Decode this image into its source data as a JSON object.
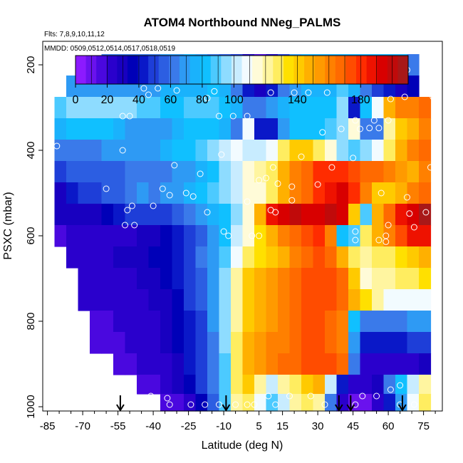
{
  "chart_data": {
    "type": "heatmap",
    "title": "ATOM4 Northbound NNeg_PALMS",
    "flights_note": "Flts: 7,8,9,10,11,12",
    "dates_note": "MMDD: 0509,0512,0514,0517,0518,0519",
    "xlabel": "Latitude (deg N)",
    "ylabel": "PSXC (mbar)",
    "xlim": [
      -87,
      83
    ],
    "ylim": [
      1010,
      145
    ],
    "y_reversed": true,
    "x_ticks": [
      -85,
      -70,
      -55,
      -40,
      -25,
      -10,
      5,
      15,
      30,
      45,
      60,
      75
    ],
    "x_tick_labels": [
      "-85",
      "-70",
      "-55",
      "-40",
      "-25",
      "-10",
      "5",
      "15",
      "30",
      "45",
      "60",
      "75"
    ],
    "y_ticks": [
      200,
      400,
      600,
      800,
      1000
    ],
    "y_tick_labels": [
      "200",
      "400",
      "600",
      "800",
      "1000"
    ],
    "colorbar": {
      "min": 0,
      "max": 210,
      "ticks": [
        0,
        20,
        40,
        60,
        80,
        100,
        140,
        180
      ],
      "tick_labels": [
        "0",
        "20",
        "40",
        "60",
        "80",
        "100",
        "140",
        "180"
      ],
      "colors": [
        "#8c1aff",
        "#6a12ee",
        "#4a08df",
        "#2a00cc",
        "#1800c0",
        "#0000b8",
        "#0a18c8",
        "#1e3ed8",
        "#2c5ee2",
        "#3a7aea",
        "#2e9af4",
        "#1ab2fc",
        "#10c0ff",
        "#4ccaff",
        "#8edcff",
        "#c8ecff",
        "#f2fbff",
        "#fffbd8",
        "#fff5a0",
        "#ffed60",
        "#ffe000",
        "#ffca00",
        "#ffb000",
        "#ff9a00",
        "#ff8000",
        "#ff6a00",
        "#ff4c00",
        "#ff2c00",
        "#ee1200",
        "#d80000",
        "#c00a0a",
        "#a81818"
      ]
    },
    "arrows_lat": [
      -54,
      -9,
      39,
      44,
      66
    ],
    "levels": [
      {
        "p": 200,
        "values": [
          null,
          null,
          null,
          null,
          null,
          60,
          60,
          62,
          62,
          64,
          68,
          72,
          74,
          70,
          64,
          56,
          46,
          30,
          18,
          28,
          52,
          70,
          74,
          74,
          74,
          74,
          74,
          76,
          76,
          78,
          78,
          60,
          null,
          null
        ]
      },
      {
        "p": 250,
        "values": [
          null,
          null,
          72,
          72,
          70,
          68,
          66,
          66,
          68,
          70,
          74,
          76,
          78,
          76,
          80,
          74,
          60,
          44,
          30,
          42,
          62,
          72,
          76,
          76,
          78,
          86,
          74,
          62,
          50,
          40,
          30,
          36,
          null,
          null
        ]
      },
      {
        "p": 300,
        "values": [
          null,
          90,
          94,
          94,
          94,
          96,
          94,
          92,
          90,
          90,
          84,
          84,
          86,
          90,
          88,
          82,
          74,
          60,
          60,
          68,
          76,
          80,
          80,
          80,
          84,
          94,
          40,
          80,
          110,
          150,
          160,
          160,
          165,
          null
        ]
      },
      {
        "p": 350,
        "values": [
          null,
          76,
          80,
          80,
          82,
          80,
          74,
          72,
          70,
          70,
          72,
          76,
          80,
          82,
          80,
          76,
          60,
          110,
          44,
          40,
          70,
          80,
          82,
          84,
          88,
          96,
          112,
          60,
          62,
          120,
          140,
          150,
          160,
          null
        ]
      },
      {
        "p": 400,
        "values": [
          null,
          60,
          62,
          62,
          64,
          66,
          68,
          68,
          70,
          70,
          76,
          80,
          82,
          88,
          96,
          100,
          110,
          100,
          100,
          106,
          126,
          140,
          142,
          128,
          112,
          96,
          90,
          92,
          110,
          130,
          150,
          160,
          170,
          null
        ]
      },
      {
        "p": 450,
        "values": [
          null,
          52,
          54,
          56,
          56,
          56,
          58,
          60,
          62,
          60,
          62,
          66,
          72,
          78,
          84,
          92,
          104,
          114,
          120,
          130,
          148,
          160,
          170,
          178,
          180,
          180,
          176,
          170,
          168,
          160,
          155,
          150,
          160,
          null
        ]
      },
      {
        "p": 500,
        "values": [
          null,
          30,
          40,
          46,
          50,
          56,
          58,
          62,
          66,
          64,
          66,
          70,
          76,
          80,
          86,
          92,
          104,
          112,
          118,
          130,
          148,
          160,
          170,
          180,
          190,
          192,
          180,
          160,
          144,
          140,
          150,
          160,
          170,
          null
        ]
      },
      {
        "p": 550,
        "values": [
          null,
          28,
          30,
          32,
          30,
          34,
          40,
          46,
          50,
          48,
          50,
          54,
          60,
          66,
          74,
          82,
          96,
          112,
          150,
          190,
          196,
          198,
          196,
          196,
          198,
          192,
          140,
          90,
          150,
          168,
          184,
          196,
          205,
          null
        ]
      },
      {
        "p": 600,
        "values": [
          null,
          18,
          20,
          20,
          20,
          22,
          24,
          26,
          30,
          30,
          34,
          40,
          48,
          56,
          66,
          80,
          100,
          116,
          136,
          150,
          160,
          170,
          176,
          178,
          160,
          80,
          90,
          130,
          150,
          160,
          176,
          184,
          190,
          null
        ]
      },
      {
        "p": 650,
        "values": [
          null,
          null,
          26,
          26,
          24,
          26,
          28,
          30,
          32,
          34,
          38,
          44,
          52,
          60,
          72,
          90,
          110,
          126,
          132,
          138,
          150,
          160,
          170,
          174,
          170,
          150,
          130,
          120,
          126,
          130,
          134,
          140,
          146,
          null
        ]
      },
      {
        "p": 700,
        "values": [
          null,
          null,
          null,
          24,
          22,
          22,
          24,
          26,
          28,
          30,
          34,
          40,
          48,
          56,
          70,
          92,
          120,
          140,
          150,
          152,
          158,
          166,
          174,
          176,
          174,
          168,
          140,
          118,
          120,
          122,
          126,
          130,
          134,
          null
        ]
      },
      {
        "p": 750,
        "values": [
          null,
          null,
          null,
          20,
          20,
          20,
          22,
          24,
          26,
          28,
          32,
          38,
          46,
          54,
          68,
          92,
          124,
          144,
          150,
          154,
          160,
          168,
          174,
          176,
          172,
          166,
          150,
          136,
          120,
          110,
          106,
          106,
          110,
          null
        ]
      },
      {
        "p": 800,
        "values": [
          null,
          null,
          null,
          null,
          18,
          18,
          20,
          22,
          24,
          26,
          30,
          36,
          44,
          52,
          66,
          92,
          124,
          144,
          150,
          156,
          162,
          168,
          172,
          172,
          168,
          160,
          80,
          60,
          60,
          62,
          64,
          66,
          68,
          null
        ]
      },
      {
        "p": 850,
        "values": [
          null,
          null,
          null,
          null,
          18,
          18,
          18,
          20,
          22,
          24,
          28,
          34,
          42,
          50,
          64,
          92,
          126,
          146,
          154,
          158,
          164,
          170,
          172,
          172,
          170,
          164,
          70,
          40,
          40,
          42,
          44,
          46,
          48,
          null
        ]
      },
      {
        "p": 900,
        "values": [
          null,
          null,
          null,
          null,
          null,
          null,
          18,
          18,
          20,
          22,
          26,
          32,
          40,
          48,
          62,
          90,
          128,
          148,
          156,
          160,
          166,
          170,
          172,
          174,
          172,
          166,
          60,
          20,
          20,
          22,
          24,
          26,
          30,
          null
        ]
      },
      {
        "p": 950,
        "values": [
          null,
          null,
          null,
          null,
          null,
          null,
          null,
          null,
          16,
          18,
          22,
          28,
          36,
          46,
          60,
          88,
          126,
          140,
          120,
          100,
          120,
          130,
          140,
          146,
          100,
          40,
          24,
          20,
          30,
          60,
          80,
          100,
          120,
          null
        ]
      },
      {
        "p": 990,
        "values": [
          null,
          null,
          null,
          null,
          null,
          null,
          null,
          null,
          null,
          null,
          14,
          16,
          24,
          36,
          56,
          88,
          120,
          130,
          110,
          90,
          100,
          120,
          130,
          120,
          60,
          20,
          10,
          12,
          20,
          40,
          70,
          110,
          130,
          null
        ]
      }
    ],
    "grid_lat_start": -87,
    "grid_lat_step": 5,
    "points": [
      {
        "lat": -70,
        "p": 192
      },
      {
        "lat": -67,
        "p": 192
      },
      {
        "lat": -64,
        "p": 192
      },
      {
        "lat": -60,
        "p": 192
      },
      {
        "lat": -75,
        "p": 205
      },
      {
        "lat": -72,
        "p": 203
      },
      {
        "lat": -20,
        "p": 205
      },
      {
        "lat": -8,
        "p": 205
      },
      {
        "lat": 28,
        "p": 188
      },
      {
        "lat": 61,
        "p": 202
      },
      {
        "lat": 65,
        "p": 210
      },
      {
        "lat": 68,
        "p": 212
      },
      {
        "lat": -85,
        "p": 215
      },
      {
        "lat": -44,
        "p": 255
      },
      {
        "lat": -38,
        "p": 255
      },
      {
        "lat": -30,
        "p": 260
      },
      {
        "lat": -14,
        "p": 262
      },
      {
        "lat": 10,
        "p": 265
      },
      {
        "lat": 20,
        "p": 265
      },
      {
        "lat": 26,
        "p": 265
      },
      {
        "lat": 34,
        "p": 265
      },
      {
        "lat": -42,
        "p": 270
      },
      {
        "lat": -17,
        "p": 278
      },
      {
        "lat": 61,
        "p": 280
      },
      {
        "lat": 67,
        "p": 275
      },
      {
        "lat": 79,
        "p": 275
      },
      {
        "lat": -53,
        "p": 320
      },
      {
        "lat": -50,
        "p": 320
      },
      {
        "lat": -12,
        "p": 320
      },
      {
        "lat": -6,
        "p": 320
      },
      {
        "lat": 0,
        "p": 320
      },
      {
        "lat": 46,
        "p": 330
      },
      {
        "lat": 54,
        "p": 330
      },
      {
        "lat": 60,
        "p": 330
      },
      {
        "lat": 40,
        "p": 350
      },
      {
        "lat": 48,
        "p": 350
      },
      {
        "lat": 52,
        "p": 348
      },
      {
        "lat": 56,
        "p": 348
      },
      {
        "lat": 32,
        "p": 358
      },
      {
        "lat": -87,
        "p": 365
      },
      {
        "lat": 80,
        "p": 370
      },
      {
        "lat": -81,
        "p": 390
      },
      {
        "lat": -53,
        "p": 400
      },
      {
        "lat": -11,
        "p": 410
      },
      {
        "lat": 23,
        "p": 415
      },
      {
        "lat": 45,
        "p": 418
      },
      {
        "lat": -84,
        "p": 440
      },
      {
        "lat": -31,
        "p": 435
      },
      {
        "lat": 11,
        "p": 440
      },
      {
        "lat": 78,
        "p": 440
      },
      {
        "lat": 36,
        "p": 440
      },
      {
        "lat": -20,
        "p": 455
      },
      {
        "lat": 8,
        "p": 465
      },
      {
        "lat": 5,
        "p": 470
      },
      {
        "lat": 13,
        "p": 478
      },
      {
        "lat": 19,
        "p": 485
      },
      {
        "lat": 30,
        "p": 480
      },
      {
        "lat": -36,
        "p": 490
      },
      {
        "lat": -26,
        "p": 500
      },
      {
        "lat": -60,
        "p": 490
      },
      {
        "lat": 57,
        "p": 500
      },
      {
        "lat": 68,
        "p": 510
      },
      {
        "lat": -33,
        "p": 505
      },
      {
        "lat": -23,
        "p": 508
      },
      {
        "lat": 0,
        "p": 520
      },
      {
        "lat": 19,
        "p": 517
      },
      {
        "lat": -40,
        "p": 530
      },
      {
        "lat": -51,
        "p": 540
      },
      {
        "lat": -49,
        "p": 530
      },
      {
        "lat": -17,
        "p": 545
      },
      {
        "lat": 10,
        "p": 540
      },
      {
        "lat": 12,
        "p": 545
      },
      {
        "lat": 69,
        "p": 548
      },
      {
        "lat": 76,
        "p": 545
      },
      {
        "lat": 82,
        "p": 548
      },
      {
        "lat": -52,
        "p": 575
      },
      {
        "lat": -48,
        "p": 575
      },
      {
        "lat": 60,
        "p": 575
      },
      {
        "lat": 71,
        "p": 580
      },
      {
        "lat": 46,
        "p": 590
      },
      {
        "lat": -10,
        "p": 590
      },
      {
        "lat": -8,
        "p": 600
      },
      {
        "lat": 2,
        "p": 600
      },
      {
        "lat": 5,
        "p": 600
      },
      {
        "lat": 59,
        "p": 600
      },
      {
        "lat": 46,
        "p": 610
      },
      {
        "lat": 56,
        "p": 610
      },
      {
        "lat": 59,
        "p": 614
      },
      {
        "lat": -87,
        "p": 615
      },
      {
        "lat": -83,
        "p": 810
      },
      {
        "lat": -57,
        "p": 950
      },
      {
        "lat": 65,
        "p": 950
      },
      {
        "lat": 61,
        "p": 960
      },
      {
        "lat": -48,
        "p": 975
      },
      {
        "lat": -41,
        "p": 975
      },
      {
        "lat": -34,
        "p": 980
      },
      {
        "lat": 9,
        "p": 975
      },
      {
        "lat": 18,
        "p": 975
      },
      {
        "lat": 27,
        "p": 975
      },
      {
        "lat": 49,
        "p": 975
      },
      {
        "lat": 55,
        "p": 975
      },
      {
        "lat": -52,
        "p": 993
      },
      {
        "lat": -50,
        "p": 993
      },
      {
        "lat": -42,
        "p": 993
      },
      {
        "lat": -33,
        "p": 995
      },
      {
        "lat": -24,
        "p": 995
      },
      {
        "lat": -18,
        "p": 995
      },
      {
        "lat": -12,
        "p": 995
      },
      {
        "lat": -5,
        "p": 995
      },
      {
        "lat": 0,
        "p": 995
      },
      {
        "lat": 3,
        "p": 995
      },
      {
        "lat": 12,
        "p": 995
      },
      {
        "lat": 33,
        "p": 995
      },
      {
        "lat": 46,
        "p": 995
      },
      {
        "lat": 65,
        "p": 995
      },
      {
        "lat": 71,
        "p": 995
      }
    ]
  }
}
